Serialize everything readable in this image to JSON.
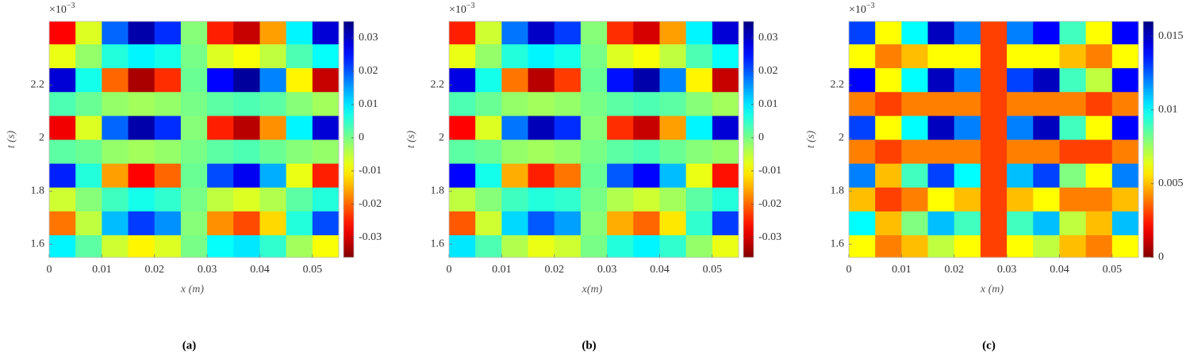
{
  "chart_data": [
    {
      "type": "heatmap",
      "caption": "(a)",
      "x_label": "x (m)",
      "y_label": "t (s)",
      "y_multiplier": {
        "base": "×10",
        "exponent": "−3"
      },
      "colormap": "jet_r",
      "xlim": [
        0,
        0.055
      ],
      "ylim": [
        1.55,
        2.44
      ],
      "xticks": [
        0,
        0.01,
        0.02,
        0.03,
        0.04,
        0.05
      ],
      "yticks": [
        1.6,
        1.8,
        2,
        2.2
      ],
      "clim": [
        -0.036,
        0.035
      ],
      "cticks": [
        -0.03,
        -0.02,
        -0.01,
        0,
        0.01,
        0.02,
        0.03
      ],
      "x": [
        0.0025,
        0.0075,
        0.0125,
        0.0175,
        0.0225,
        0.0275,
        0.0325,
        0.0375,
        0.0425,
        0.0475,
        0.0525
      ],
      "y": [
        1.59,
        1.68,
        1.77,
        1.86,
        1.95,
        2.04,
        2.13,
        2.22,
        2.31,
        2.4
      ],
      "z": [
        [
          0.009,
          0.002,
          -0.006,
          -0.01,
          -0.007,
          0.0,
          0.008,
          0.01,
          0.005,
          -0.003,
          -0.009
        ],
        [
          -0.019,
          -0.005,
          0.013,
          0.022,
          0.016,
          -0.001,
          -0.017,
          -0.022,
          -0.012,
          0.006,
          0.021
        ],
        [
          -0.006,
          -0.001,
          0.004,
          0.007,
          0.005,
          0.0,
          -0.005,
          -0.007,
          -0.004,
          0.002,
          0.006
        ],
        [
          0.024,
          0.006,
          -0.016,
          -0.027,
          -0.02,
          0.001,
          0.021,
          0.027,
          0.014,
          -0.008,
          -0.025
        ],
        [
          0.002,
          0.001,
          -0.002,
          -0.003,
          -0.002,
          0.0,
          0.002,
          0.003,
          0.001,
          -0.001,
          -0.002
        ],
        [
          -0.028,
          -0.007,
          0.019,
          0.032,
          0.023,
          -0.001,
          -0.025,
          -0.032,
          -0.017,
          0.009,
          0.029
        ],
        [
          0.003,
          0.001,
          -0.002,
          -0.003,
          -0.002,
          0.0,
          0.002,
          0.003,
          0.002,
          -0.001,
          -0.003
        ],
        [
          0.029,
          0.007,
          -0.02,
          -0.033,
          -0.024,
          0.001,
          0.026,
          0.033,
          0.017,
          -0.01,
          -0.031
        ],
        [
          -0.008,
          -0.002,
          0.006,
          0.009,
          0.007,
          0.0,
          -0.007,
          -0.009,
          -0.005,
          0.003,
          0.008
        ],
        [
          -0.027,
          -0.007,
          0.019,
          0.032,
          0.023,
          -0.001,
          -0.025,
          -0.031,
          -0.016,
          0.009,
          0.029
        ]
      ]
    },
    {
      "type": "heatmap",
      "caption": "(b)",
      "x_label": "x(m)",
      "y_label": "t (s)",
      "y_multiplier": {
        "base": "×10",
        "exponent": "−3"
      },
      "colormap": "jet_r",
      "xlim": [
        0,
        0.055
      ],
      "ylim": [
        1.55,
        2.44
      ],
      "xticks": [
        0,
        0.01,
        0.02,
        0.03,
        0.04,
        0.05
      ],
      "yticks": [
        1.6,
        1.8,
        2,
        2.2
      ],
      "clim": [
        -0.036,
        0.035
      ],
      "cticks": [
        -0.03,
        -0.02,
        -0.01,
        0,
        0.01,
        0.02,
        0.03
      ],
      "x": [
        0.0025,
        0.0075,
        0.0125,
        0.0175,
        0.0225,
        0.0275,
        0.0325,
        0.0375,
        0.0425,
        0.0475,
        0.0525
      ],
      "y": [
        1.59,
        1.68,
        1.77,
        1.86,
        1.95,
        2.04,
        2.13,
        2.22,
        2.31,
        2.4
      ],
      "z": [
        [
          0.01,
          0.003,
          -0.004,
          -0.008,
          -0.006,
          0.0,
          0.006,
          0.009,
          0.005,
          -0.002,
          -0.008
        ],
        [
          -0.021,
          -0.006,
          0.011,
          0.02,
          0.015,
          -0.001,
          -0.015,
          -0.02,
          -0.011,
          0.005,
          0.022
        ],
        [
          -0.005,
          -0.001,
          0.004,
          0.006,
          0.005,
          0.0,
          -0.004,
          -0.006,
          -0.003,
          0.002,
          0.006
        ],
        [
          0.026,
          0.007,
          -0.015,
          -0.025,
          -0.019,
          0.001,
          0.02,
          0.026,
          0.013,
          -0.008,
          -0.026
        ],
        [
          0.002,
          0.001,
          -0.002,
          -0.003,
          -0.002,
          0.0,
          0.002,
          0.003,
          0.001,
          -0.001,
          -0.002
        ],
        [
          -0.027,
          -0.007,
          0.018,
          0.031,
          0.023,
          -0.001,
          -0.024,
          -0.031,
          -0.016,
          0.009,
          0.029
        ],
        [
          0.003,
          0.001,
          -0.002,
          -0.003,
          -0.002,
          0.0,
          0.002,
          0.003,
          0.002,
          -0.001,
          -0.003
        ],
        [
          0.028,
          0.007,
          -0.019,
          -0.032,
          -0.023,
          0.001,
          0.025,
          0.032,
          0.017,
          -0.01,
          -0.031
        ],
        [
          -0.008,
          -0.002,
          0.006,
          0.009,
          0.007,
          0.0,
          -0.007,
          -0.009,
          -0.005,
          0.003,
          0.008
        ],
        [
          -0.025,
          -0.006,
          0.018,
          0.03,
          0.022,
          -0.001,
          -0.024,
          -0.03,
          -0.016,
          0.009,
          0.029
        ]
      ]
    },
    {
      "type": "heatmap",
      "caption": "(c)",
      "x_label": "x (m)",
      "y_label": "t (s)",
      "y_multiplier": {
        "base": "×10",
        "exponent": "−3"
      },
      "colormap": "jet_r",
      "xlim": [
        0,
        0.055
      ],
      "ylim": [
        1.55,
        2.44
      ],
      "xticks": [
        0,
        0.01,
        0.02,
        0.03,
        0.04,
        0.05
      ],
      "yticks": [
        1.6,
        1.8,
        2,
        2.2
      ],
      "clim": [
        0,
        0.016
      ],
      "cticks": [
        0,
        0.005,
        0.01,
        0.015
      ],
      "x": [
        0.0025,
        0.0075,
        0.0125,
        0.0175,
        0.0225,
        0.0275,
        0.0325,
        0.0375,
        0.0425,
        0.0475,
        0.0525
      ],
      "y": [
        1.59,
        1.68,
        1.77,
        1.86,
        1.95,
        2.04,
        2.13,
        2.22,
        2.31,
        2.4
      ],
      "z": [
        [
          0.006,
          0.004,
          0.005,
          0.007,
          0.006,
          0.003,
          0.006,
          0.007,
          0.005,
          0.004,
          0.006
        ],
        [
          0.01,
          0.005,
          0.008,
          0.011,
          0.009,
          0.003,
          0.009,
          0.011,
          0.007,
          0.005,
          0.011
        ],
        [
          0.005,
          0.003,
          0.004,
          0.006,
          0.005,
          0.003,
          0.005,
          0.006,
          0.004,
          0.004,
          0.005
        ],
        [
          0.012,
          0.005,
          0.009,
          0.013,
          0.01,
          0.003,
          0.011,
          0.013,
          0.008,
          0.006,
          0.012
        ],
        [
          0.004,
          0.003,
          0.004,
          0.004,
          0.004,
          0.003,
          0.004,
          0.004,
          0.003,
          0.003,
          0.004
        ],
        [
          0.013,
          0.006,
          0.01,
          0.015,
          0.012,
          0.003,
          0.012,
          0.015,
          0.009,
          0.006,
          0.014
        ],
        [
          0.004,
          0.003,
          0.004,
          0.004,
          0.004,
          0.003,
          0.004,
          0.004,
          0.004,
          0.003,
          0.004
        ],
        [
          0.014,
          0.006,
          0.01,
          0.015,
          0.012,
          0.003,
          0.013,
          0.015,
          0.009,
          0.007,
          0.014
        ],
        [
          0.006,
          0.004,
          0.005,
          0.006,
          0.006,
          0.003,
          0.006,
          0.006,
          0.005,
          0.004,
          0.006
        ],
        [
          0.013,
          0.006,
          0.01,
          0.015,
          0.012,
          0.003,
          0.012,
          0.014,
          0.009,
          0.006,
          0.014
        ]
      ]
    }
  ]
}
